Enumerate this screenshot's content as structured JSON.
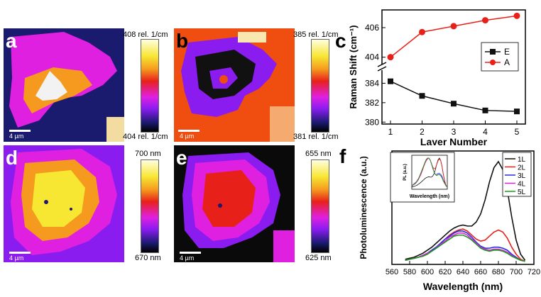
{
  "panels": {
    "a": {
      "letter": "a",
      "scale_text": "4 µm",
      "cbar_max": "408 rel. 1/cm",
      "cbar_min": "404 rel. 1/cm"
    },
    "b": {
      "letter": "b",
      "scale_text": "4 µm",
      "cbar_max": "385 rel. 1/cm",
      "cbar_min": "381 rel. 1/cm"
    },
    "c": {
      "letter": "c"
    },
    "d": {
      "letter": "d",
      "scale_text": "4 µm",
      "cbar_max": "700 nm",
      "cbar_min": "670 nm"
    },
    "e": {
      "letter": "e",
      "scale_text": "4 µm",
      "cbar_max": "655 nm",
      "cbar_min": "625 nm"
    },
    "f": {
      "letter": "f"
    }
  },
  "colors": {
    "navy": "#1a1a6e",
    "magenta": "#e020e0",
    "purple": "#8a1cf0",
    "orange": "#f59a1e",
    "red_orange": "#f04e10",
    "white_gray": "#f2f2f2",
    "black": "#000000",
    "yellow": "#f7e632"
  },
  "chart_data": [
    {
      "type": "line",
      "panel": "c",
      "xlabel": "Layer Number",
      "ylabel": "Raman Shift (cm⁻¹)",
      "x": [
        1,
        2,
        3,
        4,
        5
      ],
      "x_ticks": [
        "1",
        "2",
        "3",
        "4",
        "5"
      ],
      "y_ticks_upper": [
        "404",
        "406"
      ],
      "y_ticks_lower": [
        "380",
        "382",
        "384"
      ],
      "legend": [
        "E",
        "A"
      ],
      "series": [
        {
          "name": "A",
          "color": "#e8201a",
          "marker": "circle",
          "values": [
            404.0,
            405.7,
            406.1,
            406.5,
            406.8
          ]
        },
        {
          "name": "E",
          "color": "#111111",
          "marker": "square",
          "values": [
            384.2,
            382.7,
            381.9,
            381.2,
            381.1
          ]
        }
      ],
      "ylim_upper": [
        403.6,
        407.2
      ],
      "ylim_lower": [
        379.8,
        385.2
      ]
    },
    {
      "type": "line",
      "panel": "f",
      "xlabel": "Wavelength (nm)",
      "ylabel": "Photoluminescence (a.u.)",
      "x_ticks": [
        "560",
        "580",
        "600",
        "620",
        "640",
        "660",
        "680",
        "700",
        "720"
      ],
      "xlim": [
        560,
        720
      ],
      "ylim": [
        0,
        1.0
      ],
      "x": [
        575,
        580,
        585,
        590,
        595,
        600,
        605,
        610,
        615,
        620,
        625,
        630,
        635,
        640,
        645,
        650,
        655,
        660,
        665,
        670,
        675,
        680,
        685,
        690,
        695,
        700,
        705,
        710
      ],
      "series": [
        {
          "name": "1L",
          "color": "#111111",
          "values": [
            0.03,
            0.04,
            0.05,
            0.07,
            0.09,
            0.12,
            0.15,
            0.19,
            0.23,
            0.27,
            0.31,
            0.34,
            0.36,
            0.37,
            0.36,
            0.36,
            0.4,
            0.48,
            0.62,
            0.8,
            0.94,
            1.0,
            0.92,
            0.72,
            0.45,
            0.22,
            0.08,
            0.02
          ]
        },
        {
          "name": "2L",
          "color": "#e8201a",
          "values": [
            0.02,
            0.03,
            0.04,
            0.05,
            0.07,
            0.09,
            0.12,
            0.15,
            0.19,
            0.23,
            0.27,
            0.3,
            0.32,
            0.33,
            0.31,
            0.27,
            0.23,
            0.21,
            0.22,
            0.26,
            0.3,
            0.32,
            0.3,
            0.24,
            0.15,
            0.08,
            0.03,
            0.01
          ]
        },
        {
          "name": "3L",
          "color": "#2030e0",
          "values": [
            0.02,
            0.03,
            0.04,
            0.05,
            0.07,
            0.09,
            0.12,
            0.15,
            0.19,
            0.23,
            0.26,
            0.29,
            0.31,
            0.31,
            0.29,
            0.25,
            0.2,
            0.16,
            0.14,
            0.14,
            0.15,
            0.15,
            0.14,
            0.12,
            0.08,
            0.05,
            0.02,
            0.01
          ]
        },
        {
          "name": "4L",
          "color": "#e020e0",
          "values": [
            0.02,
            0.03,
            0.04,
            0.05,
            0.07,
            0.09,
            0.11,
            0.14,
            0.18,
            0.21,
            0.25,
            0.27,
            0.29,
            0.29,
            0.27,
            0.23,
            0.19,
            0.15,
            0.13,
            0.12,
            0.13,
            0.13,
            0.12,
            0.1,
            0.07,
            0.04,
            0.02,
            0.01
          ]
        },
        {
          "name": "5L",
          "color": "#1c9a1c",
          "values": [
            0.02,
            0.03,
            0.04,
            0.05,
            0.06,
            0.08,
            0.11,
            0.14,
            0.17,
            0.2,
            0.23,
            0.26,
            0.27,
            0.27,
            0.25,
            0.22,
            0.18,
            0.14,
            0.12,
            0.11,
            0.12,
            0.12,
            0.11,
            0.09,
            0.06,
            0.04,
            0.02,
            0.01
          ]
        }
      ],
      "legend": [
        "1L",
        "2L",
        "3L",
        "4L",
        "5L"
      ],
      "inset": {
        "xlabel": "Wavelength (nm)",
        "ylabel": "PL (a.u.)"
      }
    }
  ]
}
